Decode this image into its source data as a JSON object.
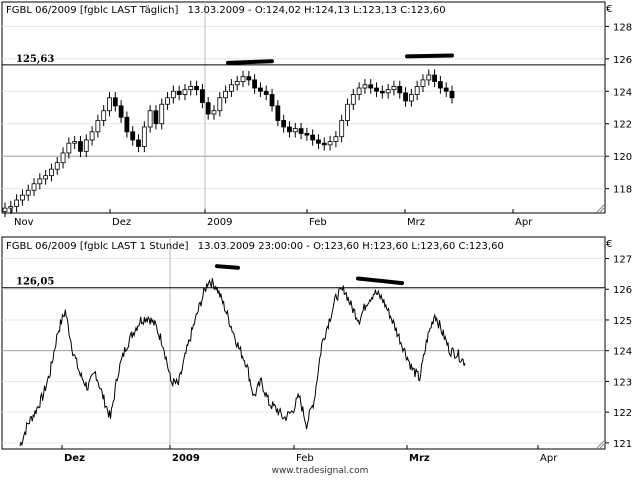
{
  "footer": "www.tradesignal.com",
  "currency": "€",
  "chart_data": [
    {
      "type": "candlestick",
      "title": "FGBL 06/2009 [fgblc LAST Täglich]",
      "info": "13.03.2009 - O:124,02 H:124,13 L:123,13 C:123,60",
      "x_tick_labels": [
        "Nov",
        "Dez",
        "2009",
        "Feb",
        "Mrz",
        "Apr"
      ],
      "y_ticks": [
        118,
        120,
        122,
        124,
        126,
        128
      ],
      "ylim": [
        116.5,
        129.5
      ],
      "grid": true,
      "levels": [
        {
          "label": "125,63",
          "value": 125.63
        },
        {
          "label": "",
          "value": 120
        }
      ],
      "values": [
        116.8,
        116.9,
        117.3,
        117.6,
        117.9,
        118.3,
        118.6,
        118.8,
        119.2,
        119.6,
        120.2,
        120.8,
        120.9,
        120.3,
        121.0,
        121.5,
        122.2,
        122.8,
        123.6,
        123.1,
        122.4,
        121.5,
        121.0,
        120.6,
        121.8,
        122.8,
        122.0,
        123.2,
        123.6,
        124.0,
        123.8,
        124.1,
        124.3,
        124.1,
        123.3,
        122.6,
        122.8,
        123.6,
        124.0,
        124.4,
        124.6,
        124.9,
        124.7,
        124.2,
        124.0,
        123.8,
        123.1,
        122.2,
        121.8,
        121.5,
        121.7,
        121.4,
        121.3,
        121.0,
        120.8,
        120.7,
        120.9,
        121.2,
        122.2,
        123.2,
        123.8,
        124.2,
        124.4,
        124.2,
        124.0,
        123.9,
        124.1,
        124.3,
        123.9,
        123.4,
        123.8,
        124.3,
        124.7,
        125.0,
        124.6,
        124.2,
        124.0,
        123.6
      ],
      "annotation_segments": [
        {
          "y1": 125.75,
          "y2": 125.85
        },
        {
          "y1": 126.15,
          "y2": 126.2
        }
      ]
    },
    {
      "type": "line",
      "title": "FGBL 06/2009 [fgblc LAST 1 Stunde]",
      "info": "13.03.2009 23:00:00 - O:123,60 H:123,60 L:123,60 C:123,60",
      "x_tick_labels": [
        "Dez",
        "2009",
        "Feb",
        "Mrz",
        "Apr"
      ],
      "y_ticks": [
        121,
        122,
        123,
        124,
        125,
        126,
        127
      ],
      "ylim": [
        120.8,
        127.7
      ],
      "grid": true,
      "levels": [
        {
          "label": "126,05",
          "value": 126.05
        },
        {
          "label": "",
          "value": 124
        }
      ],
      "values": [
        120.9,
        121.6,
        122.0,
        122.5,
        123.3,
        124.6,
        125.3,
        124.0,
        123.2,
        122.8,
        123.3,
        122.5,
        121.8,
        123.3,
        124.1,
        124.6,
        125.0,
        125.1,
        124.8,
        124.2,
        123.0,
        122.9,
        123.9,
        124.8,
        125.6,
        126.3,
        126.1,
        125.5,
        124.8,
        124.1,
        123.6,
        122.5,
        123.0,
        122.3,
        122.1,
        121.8,
        122.0,
        122.5,
        121.6,
        122.4,
        124.2,
        125.0,
        125.8,
        126.0,
        125.4,
        125.0,
        125.6,
        125.9,
        125.7,
        125.2,
        124.6,
        124.0,
        123.4,
        123.1,
        124.4,
        125.2,
        124.6,
        124.0,
        123.9,
        123.6
      ]
    }
  ]
}
